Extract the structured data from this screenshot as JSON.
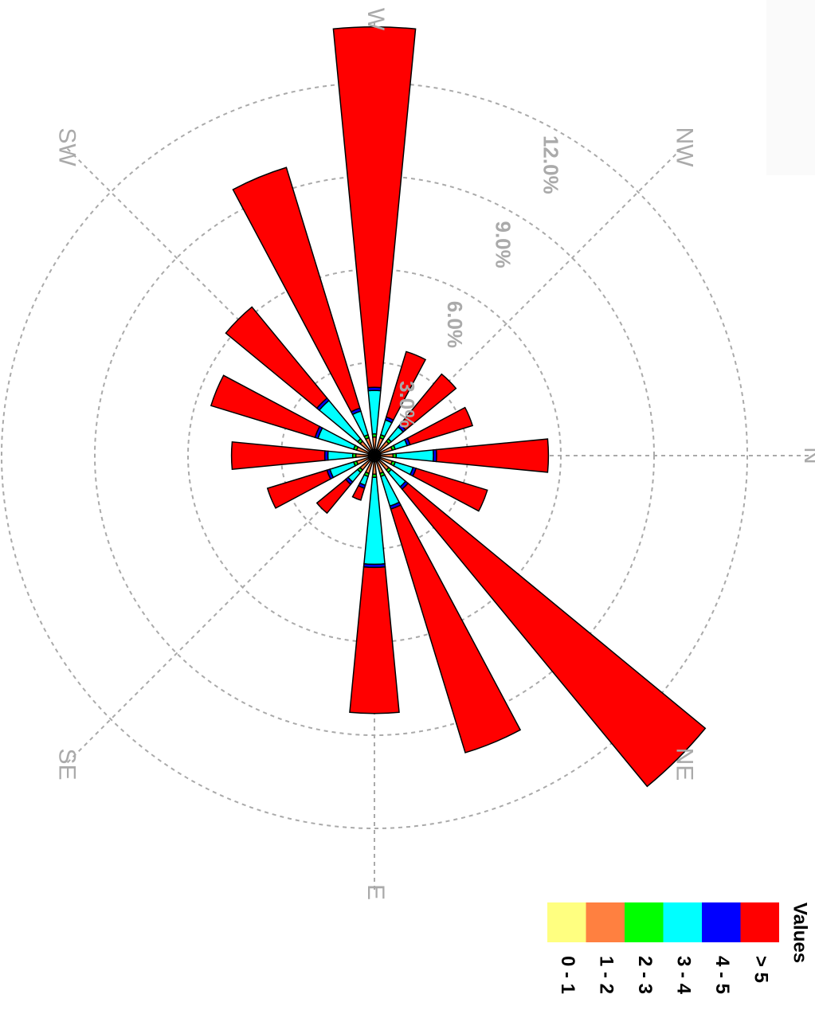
{
  "chart_data": {
    "type": "windrose",
    "x": [
      0,
      22.5,
      45,
      67.5,
      90,
      112.5,
      135,
      157.5,
      180,
      202.5,
      225,
      247.5,
      270,
      292.5,
      315,
      337.5
    ],
    "series": [
      {
        "name": "0 - 1",
        "color": "#ffff80",
        "values": [
          0.2,
          0.2,
          0.2,
          0.2,
          0.2,
          0.2,
          0.2,
          0.2,
          0.2,
          0.2,
          0.2,
          0.2,
          0.2,
          0.2,
          0.2,
          0.2
        ]
      },
      {
        "name": "1 - 2",
        "color": "#ff8040",
        "values": [
          0.4,
          0.4,
          0.4,
          0.4,
          0.4,
          0.4,
          0.4,
          0.4,
          0.4,
          0.4,
          0.4,
          0.4,
          0.4,
          0.4,
          0.4,
          0.4
        ]
      },
      {
        "name": "2 - 3",
        "color": "#00ff00",
        "values": [
          0.1,
          0.1,
          0.1,
          0.1,
          0.1,
          0.1,
          0.1,
          0.1,
          0.1,
          0.1,
          0.1,
          0.1,
          0.1,
          0.1,
          0.1,
          0.1
        ]
      },
      {
        "name": "3 - 4",
        "color": "#00ffff",
        "values": [
          1.2,
          0.6,
          0.6,
          1.0,
          2.8,
          0.3,
          0.4,
          0.8,
          0.8,
          1.2,
          1.6,
          0.8,
          1.4,
          0.5,
          0.5,
          0.4
        ]
      },
      {
        "name": "4 - 5",
        "color": "#0000ff",
        "values": [
          0.1,
          0.1,
          0.1,
          0.1,
          0.1,
          0.1,
          0.1,
          0.1,
          0.1,
          0.1,
          0.1,
          0.1,
          0.1,
          0.1,
          0.1,
          0.1
        ]
      },
      {
        "name": "> 5",
        "color": "#ff0000",
        "values": [
          3.6,
          2.4,
          12.4,
          8.2,
          4.7,
          0.4,
          1.2,
          2.0,
          3.0,
          3.5,
          3.8,
          8.1,
          11.6,
          2.2,
          2.1,
          2.1
        ]
      }
    ],
    "rlim": [
      0,
      14
    ],
    "rticks": [
      {
        "value": 3,
        "label": "3.0%"
      },
      {
        "value": 6,
        "label": "6.0%"
      },
      {
        "value": 9,
        "label": "9.0%"
      },
      {
        "value": 12,
        "label": "12.0%"
      }
    ],
    "direction_labels": [
      {
        "value": 0,
        "label": "N"
      },
      {
        "value": 45,
        "label": "NE"
      },
      {
        "value": 90,
        "label": "E"
      },
      {
        "value": 135,
        "label": "SE"
      },
      {
        "value": 225,
        "label": "SW"
      },
      {
        "value": 270,
        "label": "W"
      },
      {
        "value": 315,
        "label": "NW"
      }
    ],
    "legend_title": "Values"
  }
}
